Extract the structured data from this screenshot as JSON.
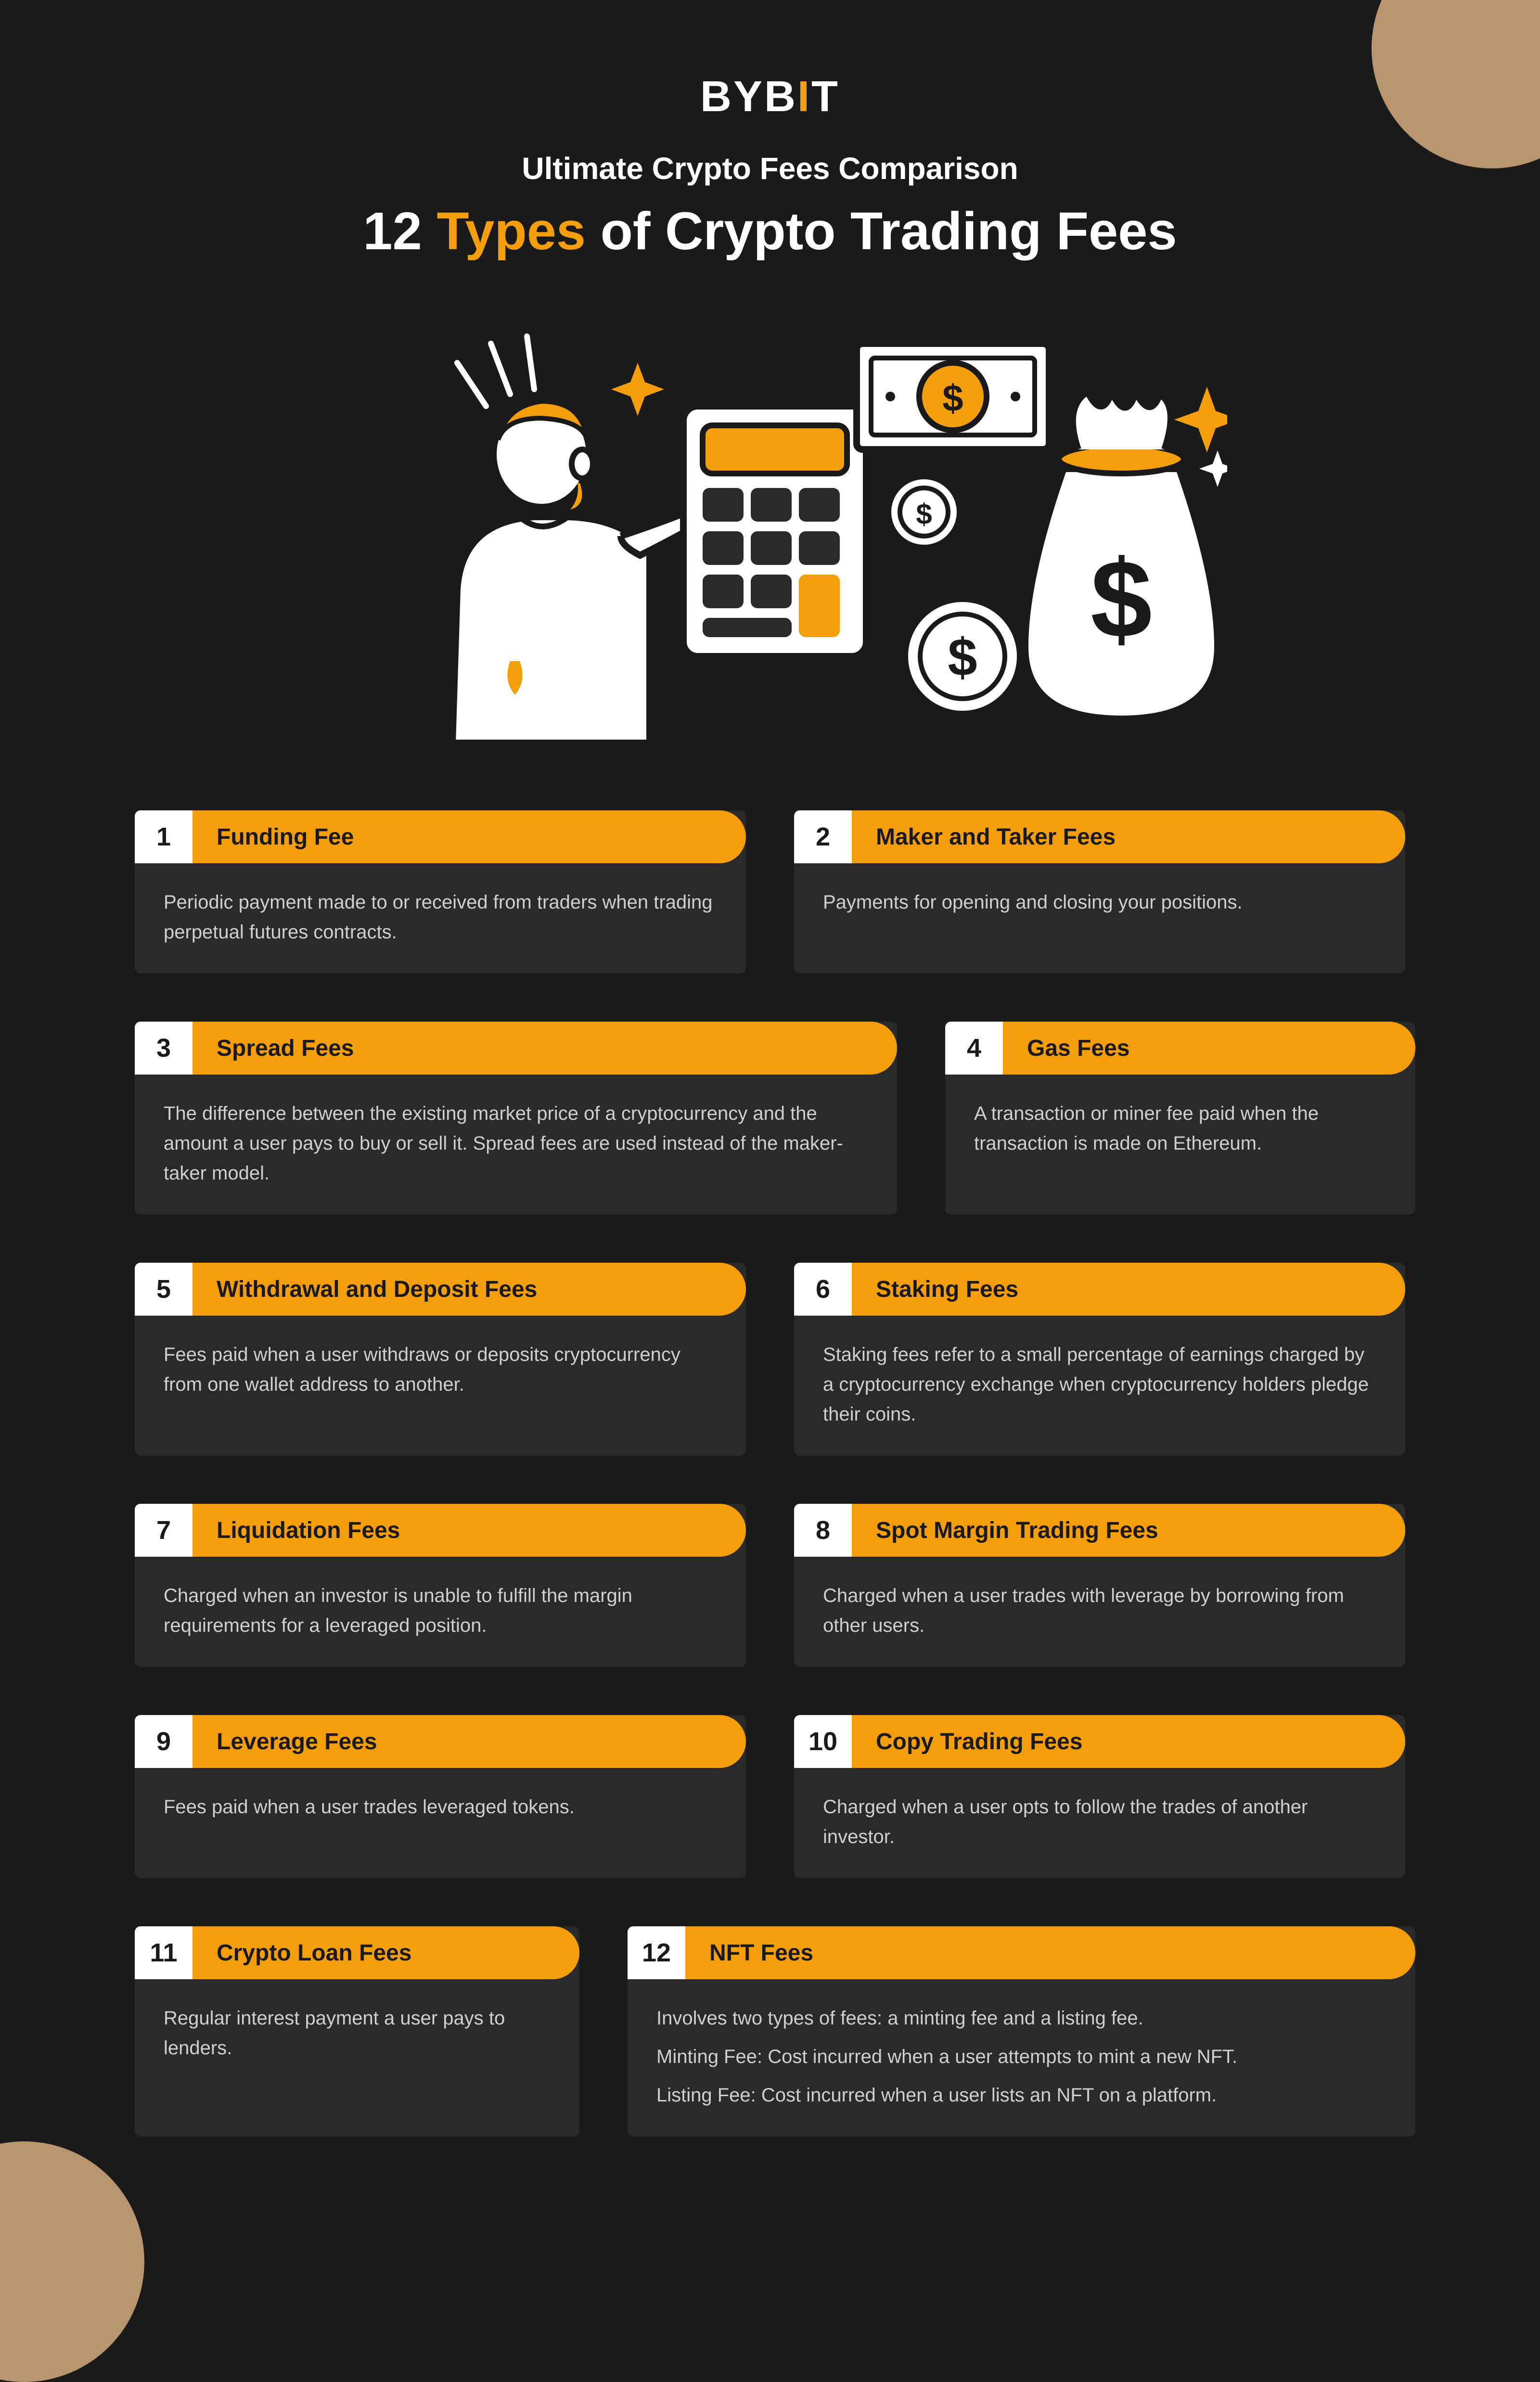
{
  "brand": {
    "name_pre": "BYB",
    "name_i": "I",
    "name_post": "T"
  },
  "header": {
    "subtitle": "Ultimate Crypto Fees Comparison",
    "title_pre": "12 ",
    "title_accent": "Types",
    "title_post": " of Crypto Trading Fees"
  },
  "colors": {
    "bg": "#1a1a1a",
    "card": "#2a2a2a",
    "accent": "#f59e0b",
    "num_bg": "#ffffff",
    "text": "#d0d0d0",
    "blob": "#b8946f"
  },
  "cards": [
    {
      "n": "1",
      "title": "Funding Fee",
      "body": [
        "Periodic payment made to or received from traders when trading perpetual futures contracts."
      ]
    },
    {
      "n": "2",
      "title": "Maker and Taker Fees",
      "body": [
        "Payments for opening and closing your positions."
      ]
    },
    {
      "n": "3",
      "title": "Spread Fees",
      "body": [
        "The difference between the existing market price of a cryptocurrency and the amount a user pays to buy or sell it. Spread fees are used instead of the maker-taker model."
      ]
    },
    {
      "n": "4",
      "title": "Gas Fees",
      "body": [
        "A transaction or miner fee paid when the transaction is made on Ethereum."
      ]
    },
    {
      "n": "5",
      "title": "Withdrawal and Deposit Fees",
      "body": [
        "Fees paid when a user withdraws or deposits cryptocurrency from one wallet address to another."
      ]
    },
    {
      "n": "6",
      "title": "Staking Fees",
      "body": [
        "Staking fees refer to a small percentage of earnings charged by a cryptocurrency exchange when cryptocurrency holders pledge their coins."
      ]
    },
    {
      "n": "7",
      "title": "Liquidation Fees",
      "body": [
        "Charged when an investor is unable to fulfill the margin requirements for a leveraged position."
      ]
    },
    {
      "n": "8",
      "title": "Spot Margin Trading Fees",
      "body": [
        "Charged when a user trades with leverage by borrowing from other users."
      ]
    },
    {
      "n": "9",
      "title": "Leverage Fees",
      "body": [
        "Fees paid when a user trades leveraged tokens."
      ]
    },
    {
      "n": "10",
      "title": "Copy Trading Fees",
      "body": [
        "Charged when a user opts to follow the trades of another investor."
      ]
    },
    {
      "n": "11",
      "title": "Crypto Loan Fees",
      "body": [
        "Regular interest payment a user pays to lenders."
      ]
    },
    {
      "n": "12",
      "title": "NFT Fees",
      "body": [
        "Involves two types of fees: a minting fee and a listing fee.",
        "Minting Fee: Cost incurred when a user attempts to mint a new NFT.",
        "Listing Fee: Cost incurred when a user lists an NFT on a platform."
      ]
    }
  ],
  "layout": {
    "rows": [
      [
        {
          "i": 0,
          "cls": "w50"
        },
        {
          "i": 1,
          "cls": "w50"
        }
      ],
      [
        {
          "i": 2,
          "cls": "w60"
        },
        {
          "i": 3,
          "cls": "w40"
        }
      ],
      [
        {
          "i": 4,
          "cls": "w50"
        },
        {
          "i": 5,
          "cls": "w50"
        }
      ],
      [
        {
          "i": 6,
          "cls": "w50"
        },
        {
          "i": 7,
          "cls": "w50"
        }
      ],
      [
        {
          "i": 8,
          "cls": "w50"
        },
        {
          "i": 9,
          "cls": "w50"
        }
      ],
      [
        {
          "i": 10,
          "cls": "w38"
        },
        {
          "i": 11,
          "cls": "w62"
        }
      ]
    ]
  }
}
